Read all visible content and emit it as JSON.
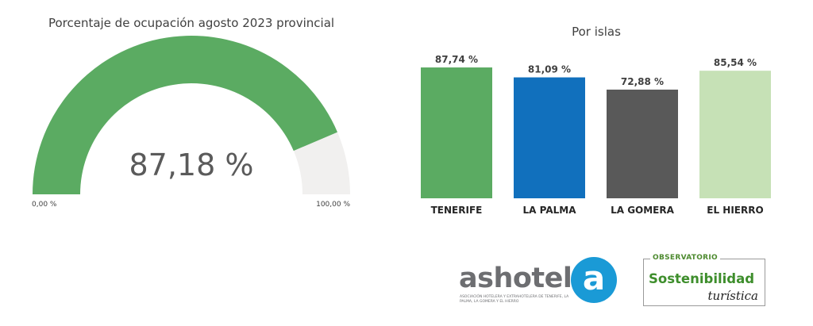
{
  "chart_data": [
    {
      "type": "gauge",
      "title": "Porcentaje de ocupación agosto 2023 provincial",
      "value": 87.18,
      "value_label": "87,18 %",
      "min": 0,
      "max": 100,
      "min_label": "0,00 %",
      "max_label": "100,00 %",
      "colors": {
        "fill": "#5bab62",
        "track": "#f1f0ef"
      }
    },
    {
      "type": "bar",
      "title": "Por islas",
      "categories": [
        "TENERIFE",
        "LA PALMA",
        "LA GOMERA",
        "EL HIERRO"
      ],
      "values": [
        87.74,
        81.09,
        72.88,
        85.54
      ],
      "value_labels": [
        "87,74 %",
        "81,09 %",
        "72,88 %",
        "85,54 %"
      ],
      "colors": [
        "#5bab62",
        "#1170bd",
        "#595959",
        "#c6e1b6"
      ],
      "ylim": [
        0,
        100
      ],
      "grid": false,
      "legend": "none"
    }
  ],
  "logos": {
    "ashotel": {
      "wordmark": "ashotel",
      "badge_letter": "a",
      "subtitle": "Asociación hotelera y extrahotelera de Tenerife, La Palma, La Gomera y El Hierro",
      "color": "#1a9ad6"
    },
    "observatorio": {
      "top": "OBSERVATORIO",
      "main": "Sostenibilidad",
      "sub": "turística"
    }
  }
}
